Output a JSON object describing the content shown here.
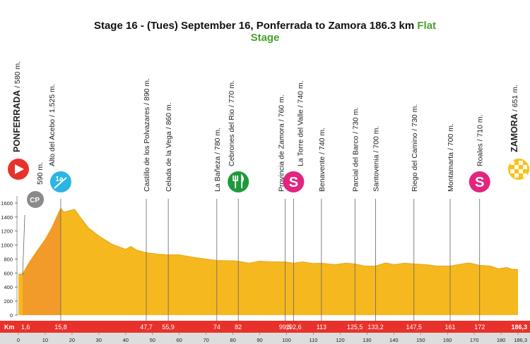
{
  "header": {
    "title": "Stage 16 - (Tues) September 16, Ponferrada to Zamora 186.3 km",
    "flat_word": "Flat",
    "stage_word": "Stage"
  },
  "colors": {
    "profile_fill": "#f6b81f",
    "climb_fill": "#f29b2a",
    "km_bar": "#e8312a",
    "axis_band": "#dddddd",
    "start_icon": "#e8312a",
    "climb_icon": "#2ab5e3",
    "sprint_icon": "#e4247f",
    "feed_icon": "#1f9a3a",
    "finish_icon": "#f7c21b",
    "cp_icon": "#8a8a8a"
  },
  "chart_data": {
    "type": "area",
    "title": "Stage 16 - (Tues) September 16, Ponferrada to Zamora 186.3 km Flat Stage",
    "xlabel": "",
    "ylabel": "",
    "xlim": [
      0,
      186.3
    ],
    "ylim": [
      0,
      1700
    ],
    "km_label": "Km",
    "x_ticks": [
      0,
      10,
      20,
      30,
      40,
      50,
      60,
      70,
      80,
      90,
      100,
      110,
      120,
      130,
      140,
      150,
      160,
      170,
      180,
      "186,3"
    ],
    "y_ticks": [
      0,
      200,
      400,
      600,
      800,
      1000,
      1200,
      1400,
      1600
    ],
    "profile": [
      {
        "x": 0,
        "y": 580
      },
      {
        "x": 1.6,
        "y": 590
      },
      {
        "x": 4,
        "y": 750
      },
      {
        "x": 7,
        "y": 920
      },
      {
        "x": 10,
        "y": 1080
      },
      {
        "x": 12.5,
        "y": 1250
      },
      {
        "x": 14.5,
        "y": 1420
      },
      {
        "x": 15.8,
        "y": 1525
      },
      {
        "x": 17,
        "y": 1470
      },
      {
        "x": 19,
        "y": 1490
      },
      {
        "x": 21,
        "y": 1510
      },
      {
        "x": 23,
        "y": 1400
      },
      {
        "x": 26,
        "y": 1250
      },
      {
        "x": 30,
        "y": 1130
      },
      {
        "x": 35,
        "y": 1010
      },
      {
        "x": 40,
        "y": 940
      },
      {
        "x": 42,
        "y": 980
      },
      {
        "x": 44,
        "y": 930
      },
      {
        "x": 47.7,
        "y": 890
      },
      {
        "x": 52,
        "y": 870
      },
      {
        "x": 55.9,
        "y": 860
      },
      {
        "x": 60,
        "y": 860
      },
      {
        "x": 66,
        "y": 820
      },
      {
        "x": 74,
        "y": 780
      },
      {
        "x": 80,
        "y": 775
      },
      {
        "x": 82,
        "y": 770
      },
      {
        "x": 86,
        "y": 740
      },
      {
        "x": 90,
        "y": 770
      },
      {
        "x": 95,
        "y": 760
      },
      {
        "x": 99.5,
        "y": 760
      },
      {
        "x": 102.6,
        "y": 740
      },
      {
        "x": 106,
        "y": 760
      },
      {
        "x": 110,
        "y": 735
      },
      {
        "x": 113,
        "y": 740
      },
      {
        "x": 118,
        "y": 720
      },
      {
        "x": 122,
        "y": 740
      },
      {
        "x": 125.5,
        "y": 730
      },
      {
        "x": 129,
        "y": 700
      },
      {
        "x": 133.2,
        "y": 700
      },
      {
        "x": 137,
        "y": 745
      },
      {
        "x": 140,
        "y": 720
      },
      {
        "x": 144,
        "y": 740
      },
      {
        "x": 147.5,
        "y": 730
      },
      {
        "x": 152,
        "y": 720
      },
      {
        "x": 156,
        "y": 700
      },
      {
        "x": 161,
        "y": 700
      },
      {
        "x": 164,
        "y": 720
      },
      {
        "x": 168,
        "y": 745
      },
      {
        "x": 172,
        "y": 710
      },
      {
        "x": 176,
        "y": 700
      },
      {
        "x": 179,
        "y": 660
      },
      {
        "x": 182,
        "y": 680
      },
      {
        "x": 184,
        "y": 655
      },
      {
        "x": 186.3,
        "y": 651
      }
    ],
    "climb": {
      "x_start": 1.6,
      "x_end": 15.8
    },
    "waypoints": [
      {
        "km": 0,
        "km_label": "",
        "name": "PONFERRADA",
        "alt": "/ 580 m.",
        "bold": true,
        "line": false,
        "icon": "start"
      },
      {
        "km": 1.6,
        "km_label": "1,6",
        "name": "",
        "alt": "590 m.",
        "bold": false,
        "line": false,
        "icon": "cp"
      },
      {
        "km": 15.8,
        "km_label": "15,8",
        "name": "Alto del Acebo",
        "alt": "/ 1.525 m.",
        "bold": false,
        "line": true,
        "icon": "climb"
      },
      {
        "km": 47.7,
        "km_label": "47,7",
        "name": "Castillo de los Polvazares",
        "alt": "/ 890 m.",
        "bold": false,
        "line": true,
        "icon": ""
      },
      {
        "km": 55.9,
        "km_label": "55,9",
        "name": "Celada de la Vega",
        "alt": "/ 860 m.",
        "bold": false,
        "line": true,
        "icon": ""
      },
      {
        "km": 74,
        "km_label": "74",
        "name": "La Bañeza",
        "alt": "/ 780 m.",
        "bold": false,
        "line": true,
        "icon": ""
      },
      {
        "km": 82,
        "km_label": "82",
        "name": "Cebrones del Rio",
        "alt": "/ 770 m.",
        "bold": false,
        "line": true,
        "icon": "feed"
      },
      {
        "km": 99.5,
        "km_label": "99,5",
        "name": "Provincia de Zamora",
        "alt": "/ 760 m.",
        "bold": false,
        "line": true,
        "icon": ""
      },
      {
        "km": 102.6,
        "km_label": "102,6",
        "name": "La Torre del Valle",
        "alt": "/ 740 m.",
        "bold": false,
        "line": true,
        "icon": "sprint"
      },
      {
        "km": 113,
        "km_label": "113",
        "name": "Benavente",
        "alt": "/ 740 m.",
        "bold": false,
        "line": true,
        "icon": ""
      },
      {
        "km": 125.5,
        "km_label": "125,5",
        "name": "Parcial del Barco",
        "alt": "/ 730 m.",
        "bold": false,
        "line": true,
        "icon": ""
      },
      {
        "km": 133.2,
        "km_label": "133,2",
        "name": "Santovenia",
        "alt": "/ 700 m.",
        "bold": false,
        "line": true,
        "icon": ""
      },
      {
        "km": 147.5,
        "km_label": "147,5",
        "name": "Riego del Camino",
        "alt": "/ 730 m.",
        "bold": false,
        "line": true,
        "icon": ""
      },
      {
        "km": 161,
        "km_label": "161",
        "name": "Montamarta",
        "alt": "/ 700 m.",
        "bold": false,
        "line": true,
        "icon": ""
      },
      {
        "km": 172,
        "km_label": "172",
        "name": "Roales",
        "alt": "/ 710 m.",
        "bold": false,
        "line": true,
        "icon": "sprint"
      },
      {
        "km": 186.3,
        "km_label": "186,3",
        "name": "ZAMORA",
        "alt": "/ 651 m.",
        "bold": true,
        "line": false,
        "icon": "finish"
      }
    ],
    "icon_text": {
      "climb": "1a",
      "sprint": "S",
      "cp": "CP"
    },
    "grid": false
  }
}
